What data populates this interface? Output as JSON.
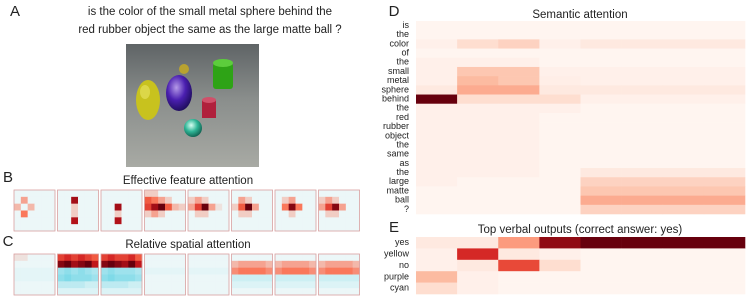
{
  "labels": [
    "A",
    "B",
    "C",
    "D",
    "E"
  ],
  "question": [
    "is the color of the small metal sphere behind the",
    "red rubber object the same as the large matte ball ?"
  ],
  "feature": {
    "title": "Effective feature attention",
    "panels": [
      [
        [
          0,
          0,
          0,
          0,
          0,
          0
        ],
        [
          0,
          0.2,
          0,
          0,
          0,
          0
        ],
        [
          0.15,
          0,
          0.15,
          0,
          0,
          0
        ],
        [
          0,
          0.3,
          0,
          0,
          0,
          0
        ],
        [
          0,
          0,
          0,
          0,
          0,
          0
        ],
        [
          0,
          0,
          0,
          0,
          0,
          0
        ]
      ],
      [
        [
          0,
          0,
          0,
          0,
          0,
          0
        ],
        [
          0,
          0,
          0.8,
          0,
          0,
          0
        ],
        [
          0,
          0,
          0.1,
          0,
          0,
          0
        ],
        [
          0,
          0,
          0.1,
          0,
          0,
          0
        ],
        [
          0,
          0,
          0.75,
          0,
          0,
          0
        ],
        [
          0,
          0,
          0,
          0,
          0,
          0
        ]
      ],
      [
        [
          0,
          0,
          0,
          0,
          0,
          0
        ],
        [
          0,
          0,
          0,
          0,
          0,
          0
        ],
        [
          0,
          0,
          0.8,
          0,
          0,
          0
        ],
        [
          0,
          0,
          0.1,
          0,
          0,
          0
        ],
        [
          0,
          0,
          0.75,
          0,
          0,
          0
        ],
        [
          0,
          0,
          0,
          0,
          0,
          0
        ]
      ],
      [
        [
          0.1,
          0.1,
          0,
          0,
          0,
          0
        ],
        [
          0.4,
          0.3,
          0.2,
          0.1,
          0,
          0
        ],
        [
          0.5,
          0.8,
          1,
          0.4,
          0.15,
          0.1
        ],
        [
          0.1,
          0.2,
          0.1,
          0,
          0,
          0
        ],
        [
          0,
          0,
          0,
          0,
          0,
          0
        ],
        [
          0,
          0,
          0,
          0,
          0,
          0
        ]
      ],
      [
        [
          0,
          0,
          0,
          0,
          0,
          0
        ],
        [
          0.1,
          0.2,
          0.1,
          0,
          0,
          0
        ],
        [
          0.2,
          0.5,
          1,
          0.2,
          0.05,
          0
        ],
        [
          0,
          0.1,
          0.1,
          0,
          0,
          0
        ],
        [
          0,
          0,
          0,
          0,
          0,
          0
        ],
        [
          0,
          0,
          0,
          0,
          0,
          0
        ]
      ],
      [
        [
          0,
          0,
          0,
          0,
          0,
          0
        ],
        [
          0,
          0.2,
          0.1,
          0,
          0,
          0
        ],
        [
          0.1,
          0.4,
          1,
          0.2,
          0,
          0
        ],
        [
          0,
          0.1,
          0.1,
          0,
          0,
          0
        ],
        [
          0,
          0,
          0,
          0,
          0,
          0
        ],
        [
          0,
          0,
          0,
          0,
          0,
          0
        ]
      ],
      [
        [
          0,
          0,
          0,
          0,
          0,
          0
        ],
        [
          0,
          0.1,
          0.2,
          0,
          0,
          0
        ],
        [
          0,
          0.3,
          0.9,
          0.3,
          0,
          0
        ],
        [
          0,
          0,
          0.1,
          0,
          0,
          0
        ],
        [
          0,
          0,
          0,
          0,
          0,
          0
        ],
        [
          0,
          0,
          0,
          0,
          0,
          0
        ]
      ],
      [
        [
          0,
          0,
          0,
          0,
          0,
          0
        ],
        [
          0.1,
          0.2,
          0.1,
          0,
          0,
          0
        ],
        [
          0.2,
          0.5,
          0.9,
          0.2,
          0,
          0
        ],
        [
          0,
          0.1,
          0.1,
          0,
          0,
          0
        ],
        [
          0,
          0,
          0,
          0,
          0,
          0
        ],
        [
          0,
          0,
          0,
          0,
          0,
          0
        ]
      ]
    ]
  },
  "spatial": {
    "title": "Relative spatial attention",
    "panels": [
      [
        [
          0.05,
          0.05,
          0,
          0,
          0,
          0
        ],
        [
          0,
          0,
          0,
          0,
          0,
          0
        ],
        [
          -0.05,
          -0.05,
          -0.05,
          -0.05,
          -0.05,
          -0.05
        ],
        [
          -0.05,
          -0.05,
          -0.05,
          -0.05,
          -0.05,
          -0.05
        ],
        [
          0,
          0,
          0,
          0,
          0,
          0
        ],
        [
          0,
          0,
          0,
          0,
          0,
          0
        ]
      ],
      [
        [
          0.5,
          0.6,
          0.5,
          0.6,
          0.5,
          0.4
        ],
        [
          0.9,
          1,
          0.8,
          0.9,
          1,
          0.7
        ],
        [
          -0.5,
          -0.6,
          -0.5,
          -0.6,
          -0.5,
          -0.4
        ],
        [
          -0.6,
          -0.7,
          -0.6,
          -0.6,
          -0.6,
          -0.5
        ],
        [
          -0.3,
          -0.3,
          -0.3,
          -0.3,
          -0.2,
          -0.2
        ],
        [
          -0.1,
          -0.1,
          -0.1,
          -0.1,
          -0.1,
          -0.1
        ]
      ],
      [
        [
          0.5,
          0.6,
          0.5,
          0.5,
          0.6,
          0.4
        ],
        [
          0.9,
          1,
          0.9,
          0.8,
          1,
          0.7
        ],
        [
          -0.5,
          -0.6,
          -0.5,
          -0.5,
          -0.5,
          -0.4
        ],
        [
          -0.6,
          -0.7,
          -0.6,
          -0.6,
          -0.6,
          -0.5
        ],
        [
          -0.3,
          -0.3,
          -0.3,
          -0.3,
          -0.2,
          -0.2
        ],
        [
          -0.1,
          -0.1,
          -0.1,
          -0.1,
          -0.1,
          -0.1
        ]
      ],
      [
        [
          0,
          0,
          0,
          0,
          0,
          0
        ],
        [
          0,
          0,
          0,
          0,
          0,
          0
        ],
        [
          -0.05,
          -0.05,
          -0.05,
          -0.05,
          -0.05,
          -0.05
        ],
        [
          0,
          0,
          0,
          0,
          0,
          0
        ],
        [
          0,
          0,
          0,
          0,
          0,
          0
        ],
        [
          0,
          0,
          0,
          0,
          0,
          0
        ]
      ],
      [
        [
          0,
          0,
          0,
          0,
          0,
          0
        ],
        [
          0,
          0,
          0,
          0,
          0,
          0
        ],
        [
          -0.05,
          -0.05,
          -0.05,
          -0.05,
          -0.05,
          -0.05
        ],
        [
          0,
          0,
          0,
          0,
          0,
          0
        ],
        [
          0,
          0,
          0,
          0,
          0,
          0
        ],
        [
          0,
          0,
          0,
          0,
          0,
          0
        ]
      ],
      [
        [
          0,
          0,
          0,
          0,
          0,
          0
        ],
        [
          0.15,
          0.2,
          0.2,
          0.2,
          0.2,
          0.15
        ],
        [
          0.25,
          0.3,
          0.3,
          0.3,
          0.3,
          0.25
        ],
        [
          -0.2,
          -0.2,
          -0.2,
          -0.2,
          -0.2,
          -0.2
        ],
        [
          -0.1,
          -0.1,
          -0.1,
          -0.1,
          -0.1,
          -0.1
        ],
        [
          0,
          0,
          0,
          0,
          0,
          0
        ]
      ],
      [
        [
          0,
          0,
          0,
          0,
          0,
          0
        ],
        [
          0.15,
          0.2,
          0.2,
          0.2,
          0.2,
          0.15
        ],
        [
          0.25,
          0.3,
          0.3,
          0.3,
          0.3,
          0.25
        ],
        [
          -0.2,
          -0.2,
          -0.2,
          -0.2,
          -0.2,
          -0.2
        ],
        [
          -0.1,
          -0.1,
          -0.1,
          -0.1,
          -0.1,
          -0.1
        ],
        [
          0,
          0,
          0,
          0,
          0,
          0
        ]
      ],
      [
        [
          0,
          0,
          0,
          0,
          0,
          0
        ],
        [
          0.15,
          0.2,
          0.2,
          0.2,
          0.2,
          0.15
        ],
        [
          0.25,
          0.3,
          0.3,
          0.3,
          0.3,
          0.25
        ],
        [
          -0.2,
          -0.2,
          -0.2,
          -0.2,
          -0.2,
          -0.2
        ],
        [
          -0.1,
          -0.1,
          -0.1,
          -0.1,
          -0.1,
          -0.1
        ],
        [
          0,
          0,
          0,
          0,
          0,
          0
        ]
      ]
    ]
  },
  "semantic": {
    "title": "Semantic attention",
    "rows": [
      "is",
      "the",
      "color",
      "of",
      "the",
      "small",
      "metal",
      "sphere",
      "behind",
      "the",
      "red",
      "rubber",
      "object",
      "the",
      "same",
      "as",
      "the",
      "large",
      "matte",
      "ball",
      "?"
    ],
    "values": [
      [
        0,
        0,
        0,
        0,
        0,
        0,
        0,
        0
      ],
      [
        0,
        0,
        0,
        0,
        0,
        0,
        0,
        0
      ],
      [
        0.02,
        0.1,
        0.15,
        0.02,
        0.05,
        0.05,
        0.05,
        0.05
      ],
      [
        0,
        0,
        0,
        0,
        0,
        0,
        0,
        0
      ],
      [
        0.02,
        0.02,
        0.02,
        0,
        0,
        0,
        0,
        0
      ],
      [
        0.02,
        0.2,
        0.2,
        0.02,
        0.02,
        0.02,
        0.02,
        0.02
      ],
      [
        0.02,
        0.25,
        0.2,
        0.03,
        0.02,
        0.02,
        0.02,
        0.02
      ],
      [
        0.05,
        0.3,
        0.3,
        0.05,
        0.05,
        0.05,
        0.05,
        0.05
      ],
      [
        1,
        0.1,
        0.1,
        0.1,
        0.02,
        0.02,
        0.02,
        0.02
      ],
      [
        0.02,
        0.02,
        0.02,
        0.02,
        0,
        0,
        0,
        0
      ],
      [
        0.02,
        0.02,
        0.02,
        0,
        0,
        0,
        0,
        0
      ],
      [
        0.02,
        0.02,
        0.02,
        0,
        0,
        0,
        0,
        0
      ],
      [
        0.02,
        0.02,
        0.02,
        0,
        0,
        0,
        0,
        0
      ],
      [
        0.02,
        0.02,
        0.02,
        0,
        0,
        0,
        0,
        0
      ],
      [
        0.02,
        0.02,
        0.02,
        0,
        0,
        0,
        0,
        0
      ],
      [
        0.02,
        0.02,
        0.02,
        0,
        0,
        0,
        0,
        0
      ],
      [
        0.02,
        0.02,
        0.02,
        0,
        0.05,
        0.05,
        0.05,
        0.05
      ],
      [
        0.02,
        0,
        0,
        0,
        0.15,
        0.15,
        0.15,
        0.15
      ],
      [
        0,
        0,
        0,
        0,
        0.2,
        0.2,
        0.2,
        0.2
      ],
      [
        0,
        0,
        0,
        0,
        0.3,
        0.3,
        0.3,
        0.3
      ],
      [
        0,
        0,
        0,
        0,
        0.15,
        0.15,
        0.15,
        0.15
      ]
    ]
  },
  "outputs": {
    "title": "Top verbal outputs (correct answer: yes)",
    "rows": [
      "yes",
      "yellow",
      "no",
      "purple",
      "cyan"
    ],
    "values": [
      [
        0.05,
        0.05,
        0.35,
        0.9,
        1,
        1,
        1,
        1
      ],
      [
        0.02,
        0.7,
        0.05,
        0.02,
        0,
        0,
        0,
        0
      ],
      [
        0.02,
        0.05,
        0.6,
        0.1,
        0,
        0,
        0,
        0
      ],
      [
        0.25,
        0.02,
        0,
        0,
        0,
        0,
        0,
        0
      ],
      [
        0.1,
        0.02,
        0,
        0,
        0,
        0,
        0,
        0
      ]
    ]
  }
}
